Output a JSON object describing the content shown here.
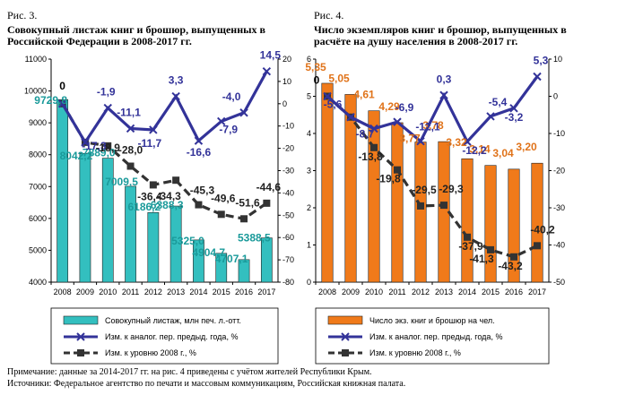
{
  "chart_data": [
    {
      "type": "bar+line",
      "figure_label": "Рис. 3.",
      "title_lines": [
        "Совокупный листаж книг и брошюр, выпущенных в",
        "Российской Федерации в 2008-2017 гг."
      ],
      "categories": [
        "2008",
        "2009",
        "2010",
        "2011",
        "2012",
        "2013",
        "2014",
        "2015",
        "2016",
        "2017"
      ],
      "ylim_left": [
        4000,
        11000
      ],
      "yticks_left": [
        "4000",
        "5000",
        "6000",
        "7000",
        "8000",
        "9000",
        "10000",
        "11000"
      ],
      "ylim_right": [
        -80,
        20
      ],
      "yticks_right": [
        "-80",
        "-70",
        "-60",
        "-50",
        "-40",
        "-30",
        "-20",
        "-10",
        "0",
        "10",
        "20"
      ],
      "grid": false,
      "legend_placement": "bottom",
      "colors": {
        "bar": "#33bfbf",
        "line1": "#333399",
        "line2": "#333333",
        "barlabel": "#1a9a9a"
      },
      "series": [
        {
          "name": "Совокупный листаж, млн печ. л.-отт.",
          "axis": "left",
          "kind": "bar",
          "values": [
            9729.8,
            8042.2,
            7889.0,
            7009.5,
            6186.2,
            6388.3,
            5325.0,
            4904.7,
            4707.1,
            5388.5
          ],
          "labels": [
            "9729,8",
            "8042,2",
            "7889,0",
            "7009,5",
            "6186,2",
            "6388,3",
            "5325,0",
            "4904,7",
            "4707,1",
            "5388,5"
          ]
        },
        {
          "name": "Изм. к аналог. пер. предыд. года, %",
          "axis": "right",
          "kind": "line",
          "values": [
            0,
            -17.3,
            -1.9,
            -11.1,
            -11.7,
            3.3,
            -16.6,
            -7.9,
            -4.0,
            14.5
          ],
          "labels": [
            "0",
            "-17,3",
            "-1,9",
            "-11,1",
            "-11,7",
            "3,3",
            "-16,6",
            "-7,9",
            "-4,0",
            "14,5"
          ]
        },
        {
          "name": "Изм. к уровню 2008 г., %",
          "axis": "right",
          "kind": "dashed",
          "values": [
            0,
            -17.3,
            -18.9,
            -28.0,
            -36.4,
            -34.3,
            -45.3,
            -49.6,
            -51.6,
            -44.6
          ],
          "labels": [
            "",
            "",
            "-18,9",
            "-28,0",
            "-36,4",
            "-34,3",
            "-45,3",
            "-49,6",
            "-51,6",
            "-44,6"
          ]
        }
      ]
    },
    {
      "type": "bar+line",
      "figure_label": "Рис. 4.",
      "title_lines": [
        "Число экземпляров книг и брошюр, выпущенных в",
        "расчёте на душу населения в 2008-2017 гг."
      ],
      "categories": [
        "2008",
        "2009",
        "2010",
        "2011",
        "2012",
        "2013",
        "2014",
        "2015",
        "2016",
        "2017"
      ],
      "ylim_left": [
        0,
        6
      ],
      "yticks_left": [
        "0",
        "1",
        "2",
        "3",
        "4",
        "5",
        "6"
      ],
      "ylim_right": [
        -50,
        10
      ],
      "yticks_right": [
        "-50",
        "-40",
        "-30",
        "-20",
        "-10",
        "0",
        "10"
      ],
      "grid": false,
      "legend_placement": "bottom",
      "colors": {
        "bar": "#f07a1a",
        "line1": "#333399",
        "line2": "#333333",
        "barlabel": "#e0731a"
      },
      "series": [
        {
          "name": "Число экз. книг и брошюр на чел.",
          "axis": "left",
          "kind": "bar",
          "values": [
            5.35,
            5.05,
            4.61,
            4.29,
            3.77,
            3.78,
            3.32,
            3.14,
            3.04,
            3.2
          ],
          "labels": [
            "5,35",
            "5,05",
            "4,61",
            "4,29",
            "3,77",
            "3,78",
            "3,32",
            "3,14",
            "3,04",
            "3,20"
          ]
        },
        {
          "name": "Изм. к аналог. пер. предыд. года, %",
          "axis": "right",
          "kind": "line",
          "values": [
            0,
            -5.6,
            -8.7,
            -6.9,
            -12.1,
            0.3,
            -12.2,
            -5.4,
            -3.2,
            5.3
          ],
          "labels": [
            "0",
            "-5,6",
            "-8,7",
            "-6,9",
            "-12,1",
            "0,3",
            "-12,2",
            "-5,4",
            "-3,2",
            "5,3"
          ]
        },
        {
          "name": "Изм. к уровню 2008 г., %",
          "axis": "right",
          "kind": "dashed",
          "values": [
            0,
            -5.6,
            -13.8,
            -19.8,
            -29.5,
            -29.3,
            -37.9,
            -41.3,
            -43.2,
            -40.2
          ],
          "labels": [
            "",
            "",
            "-13,8",
            "-19,8",
            "-29,5",
            "-29,3",
            "-37,9",
            "-41,3",
            "-43,2",
            "-40,2"
          ]
        }
      ]
    }
  ],
  "note": "Примечание: данные за 2014-2017 гг. на рис. 4 приведены с учётом жителей Республики Крым.",
  "sources": "Источники: Федеральное агентство по печати и массовым коммуникациям, Российская книжная палата."
}
